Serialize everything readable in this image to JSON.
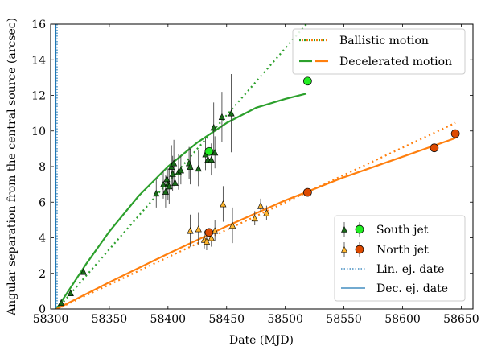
{
  "chart_data": {
    "type": "scatter",
    "title": "",
    "xlabel": "Date (MJD)",
    "ylabel": "Angular separation from the central source (arcsec)",
    "xlim": [
      58300,
      58660
    ],
    "ylim": [
      0,
      16
    ],
    "xticks": [
      58300,
      58350,
      58400,
      58450,
      58500,
      58550,
      58600,
      58650
    ],
    "yticks": [
      0,
      2,
      4,
      6,
      8,
      10,
      12,
      14,
      16
    ],
    "grid": false,
    "colors": {
      "south": "#2ca02c",
      "south_light": "#22ee22",
      "north": "#ff7f0e",
      "north_light": "#ffb62e",
      "north_dark": "#dd4a00",
      "ejection_lines": "#1f77b4"
    },
    "vertical_lines": [
      {
        "name": "Lin. ej. date",
        "x": 58305.5,
        "style": "dotted"
      },
      {
        "name": "Dec. ej. date",
        "x": 58304.5,
        "style": "solid"
      }
    ],
    "series": [
      {
        "name": "South jet",
        "marker": "triangle",
        "points": [
          {
            "x": 58309,
            "y": 0.35,
            "err": 0.1
          },
          {
            "x": 58317,
            "y": 0.9,
            "err": 0.1
          },
          {
            "x": 58328,
            "y": 2.1,
            "err": 0.1
          },
          {
            "x": 58390,
            "y": 6.5,
            "err": 0.8
          },
          {
            "x": 58396,
            "y": 7.0,
            "err": 0.8
          },
          {
            "x": 58398,
            "y": 6.6,
            "err": 0.9
          },
          {
            "x": 58399,
            "y": 7.3,
            "err": 1.0
          },
          {
            "x": 58400,
            "y": 7.0,
            "err": 0.9
          },
          {
            "x": 58401,
            "y": 6.9,
            "err": 1.0
          },
          {
            "x": 58403,
            "y": 8.0,
            "err": 1.2
          },
          {
            "x": 58404,
            "y": 7.6,
            "err": 1.0
          },
          {
            "x": 58405,
            "y": 8.2,
            "err": 1.3
          },
          {
            "x": 58406,
            "y": 7.1,
            "err": 0.9
          },
          {
            "x": 58409,
            "y": 7.7,
            "err": 1.0
          },
          {
            "x": 58411,
            "y": 7.8,
            "err": 0.8
          },
          {
            "x": 58418,
            "y": 8.2,
            "err": 0.9
          },
          {
            "x": 58419,
            "y": 8.0,
            "err": 1.0
          },
          {
            "x": 58426,
            "y": 7.9,
            "err": 1.0
          },
          {
            "x": 58432,
            "y": 8.7,
            "err": 0.9
          },
          {
            "x": 58434,
            "y": 8.4,
            "err": 0.8
          },
          {
            "x": 58437,
            "y": 8.4,
            "err": 0.9
          },
          {
            "x": 58439,
            "y": 10.2,
            "err": 1.4
          },
          {
            "x": 58440,
            "y": 8.8,
            "err": 0.9
          },
          {
            "x": 58446,
            "y": 10.8,
            "err": 1.4
          },
          {
            "x": 58454,
            "y": 11.0,
            "err": 2.2
          }
        ],
        "highlight_points": [
          {
            "x": 58435,
            "y": 8.85
          },
          {
            "x": 58519,
            "y": 12.8
          }
        ],
        "ballistic_fit": {
          "x": [
            58305.5,
            58518
          ],
          "y": [
            0,
            16
          ]
        },
        "decelerated_fit": {
          "x": [
            58305,
            58330,
            58350,
            58375,
            58400,
            58425,
            58450,
            58475,
            58500,
            58518
          ],
          "y": [
            0,
            2.5,
            4.35,
            6.35,
            8.0,
            9.35,
            10.45,
            11.3,
            11.8,
            12.1
          ]
        }
      },
      {
        "name": "North jet",
        "marker": "triangle",
        "points": [
          {
            "x": 58419,
            "y": 4.4,
            "err": 0.9
          },
          {
            "x": 58426,
            "y": 4.5,
            "err": 0.9
          },
          {
            "x": 58431,
            "y": 3.9,
            "err": 0.5
          },
          {
            "x": 58433,
            "y": 3.8,
            "err": 0.5
          },
          {
            "x": 58437,
            "y": 4.0,
            "err": 0.5
          },
          {
            "x": 58440,
            "y": 4.4,
            "err": 0.6
          },
          {
            "x": 58447,
            "y": 5.9,
            "err": 1.0
          },
          {
            "x": 58455,
            "y": 4.7,
            "err": 1.0
          },
          {
            "x": 58474,
            "y": 5.1,
            "err": 0.4
          },
          {
            "x": 58479,
            "y": 5.8,
            "err": 0.4
          },
          {
            "x": 58484,
            "y": 5.4,
            "err": 0.4
          }
        ],
        "highlight_points": [
          {
            "x": 58435,
            "y": 4.3
          },
          {
            "x": 58519,
            "y": 6.55
          },
          {
            "x": 58627,
            "y": 9.05
          },
          {
            "x": 58645,
            "y": 9.85
          }
        ],
        "ballistic_fit": {
          "x": [
            58305.5,
            58645
          ],
          "y": [
            0,
            10.45
          ]
        },
        "decelerated_fit": {
          "x": [
            58305,
            58350,
            58400,
            58450,
            58500,
            58550,
            58600,
            58645
          ],
          "y": [
            0,
            1.5,
            3.1,
            4.65,
            6.1,
            7.4,
            8.55,
            9.6
          ]
        }
      }
    ],
    "legends": [
      {
        "position": "top-right",
        "entries": [
          {
            "label": "Ballistic motion",
            "kind": "ballistic"
          },
          {
            "label": "Decelerated motion",
            "kind": "decelerated"
          }
        ]
      },
      {
        "position": "bottom-right",
        "entries": [
          {
            "label": "South jet",
            "kind": "south"
          },
          {
            "label": "North jet",
            "kind": "north"
          },
          {
            "label": "Lin. ej. date",
            "kind": "lin"
          },
          {
            "label": "Dec. ej. date",
            "kind": "dec"
          }
        ]
      }
    ]
  }
}
